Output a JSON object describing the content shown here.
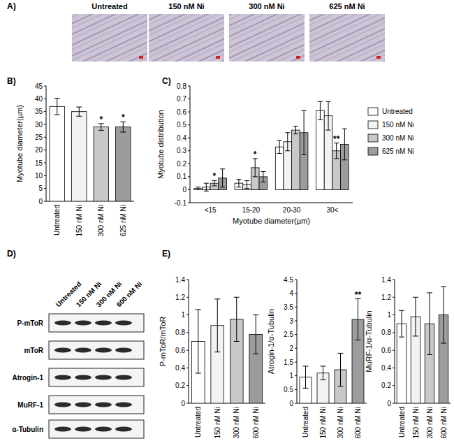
{
  "images": {
    "title": "A)",
    "labels": [
      "Untreated",
      "150 nM Ni",
      "300 nM Ni",
      "625 nM Ni"
    ]
  },
  "blot": {
    "title": "D)",
    "lanes": [
      "Untreated",
      "150 nM Ni",
      "300 nM Ni",
      "600 nM Ni"
    ],
    "rows": [
      "P-mToR",
      "mToR",
      "Atrogin-1",
      "MuRF-1",
      "α-Tubulin"
    ]
  },
  "chart_data": [
    {
      "type": "bar",
      "title": "B)",
      "y_label": "Myotube diameter(µm)",
      "categories": [
        "Untreated",
        "150 nM Ni",
        "300 nM Ni",
        "625 nM Ni"
      ],
      "values": [
        37,
        35,
        29,
        29
      ],
      "errors": [
        3.2,
        1.8,
        1.3,
        2.0
      ],
      "annotations": [
        null,
        null,
        "*",
        "*"
      ],
      "colors": [
        "#ffffff",
        "#f2f2f2",
        "#c8c8c8",
        "#9c9c9c"
      ],
      "ylim": [
        0,
        45
      ],
      "yticks": [
        0,
        5,
        10,
        15,
        20,
        25,
        30,
        35,
        40,
        45
      ]
    },
    {
      "type": "bar",
      "title": "C)",
      "x_label": "Myotube diameter(µm)",
      "y_label": "Myotube distribution",
      "categories": [
        "<15",
        "15-20",
        "20-30",
        "30<"
      ],
      "series": [
        {
          "name": "Untreated",
          "color": "#ffffff",
          "values": [
            0.01,
            0.05,
            0.33,
            0.61
          ],
          "errors": [
            0.01,
            0.03,
            0.05,
            0.07
          ],
          "annotations": [
            null,
            null,
            null,
            null
          ]
        },
        {
          "name": "150 nM Ni",
          "color": "#f2f2f2",
          "values": [
            0.02,
            0.04,
            0.37,
            0.57
          ],
          "errors": [
            0.03,
            0.03,
            0.07,
            0.11
          ],
          "annotations": [
            null,
            null,
            null,
            null
          ]
        },
        {
          "name": "300 nM Ni",
          "color": "#c8c8c8",
          "values": [
            0.05,
            0.17,
            0.46,
            0.3
          ],
          "errors": [
            0.02,
            0.07,
            0.03,
            0.06
          ],
          "annotations": [
            "*",
            "*",
            null,
            "**"
          ]
        },
        {
          "name": "625 nM Ni",
          "color": "#9c9c9c",
          "values": [
            0.09,
            0.1,
            0.44,
            0.35
          ],
          "errors": [
            0.07,
            0.04,
            0.17,
            0.12
          ],
          "annotations": [
            null,
            null,
            null,
            null
          ]
        }
      ],
      "ylim": [
        -0.1,
        0.8
      ],
      "yticks": [
        -0.1,
        0,
        0.1,
        0.2,
        0.3,
        0.4,
        0.5,
        0.6,
        0.7,
        0.8
      ],
      "legend": "right"
    },
    {
      "type": "bar",
      "title": "E)",
      "y_label": "P-mToR/mToR",
      "categories": [
        "Untreated",
        "150 nM Ni",
        "300 nM Ni",
        "600 nM Ni"
      ],
      "values": [
        0.7,
        0.88,
        0.95,
        0.78
      ],
      "errors": [
        0.36,
        0.3,
        0.25,
        0.22
      ],
      "annotations": [
        null,
        null,
        null,
        null
      ],
      "colors": [
        "#ffffff",
        "#f2f2f2",
        "#c8c8c8",
        "#9c9c9c"
      ],
      "ylim": [
        0,
        1.4
      ],
      "yticks": [
        0,
        0.2,
        0.4,
        0.6,
        0.8,
        1,
        1.2,
        1.4
      ]
    },
    {
      "type": "bar",
      "y_label": "Atrogin-1/α-Tubulin",
      "categories": [
        "Untreated",
        "150 nM Ni",
        "300 nM Ni",
        "600 nM Ni"
      ],
      "values": [
        0.95,
        1.1,
        1.22,
        3.05
      ],
      "errors": [
        0.4,
        0.25,
        0.6,
        0.75
      ],
      "annotations": [
        null,
        null,
        null,
        "**"
      ],
      "colors": [
        "#ffffff",
        "#f2f2f2",
        "#c8c8c8",
        "#9c9c9c"
      ],
      "ylim": [
        0,
        4.5
      ],
      "yticks": [
        0,
        0.5,
        1,
        1.5,
        2,
        2.5,
        3,
        3.5,
        4,
        4.5
      ]
    },
    {
      "type": "bar",
      "y_label": "MuRF-1/α-Tubulin",
      "categories": [
        "Untreated",
        "150 nM Ni",
        "300 nM Ni",
        "600 nM Ni"
      ],
      "values": [
        0.9,
        0.98,
        0.9,
        1.0
      ],
      "errors": [
        0.15,
        0.22,
        0.35,
        0.32
      ],
      "annotations": [
        null,
        null,
        null,
        null
      ],
      "colors": [
        "#ffffff",
        "#f2f2f2",
        "#c8c8c8",
        "#9c9c9c"
      ],
      "ylim": [
        0,
        1.4
      ],
      "yticks": [
        0,
        0.2,
        0.4,
        0.6,
        0.8,
        1,
        1.2,
        1.4
      ]
    }
  ]
}
